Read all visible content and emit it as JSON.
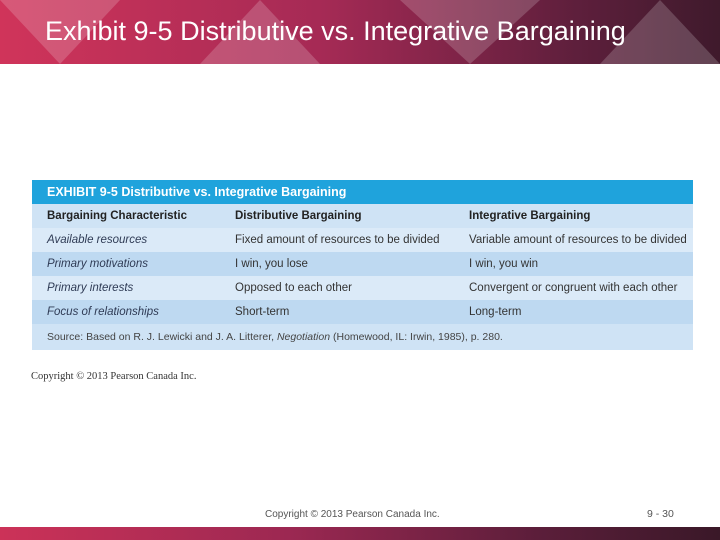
{
  "slide": {
    "title": "Exhibit 9-5 Distributive vs. Integrative Bargaining",
    "accent_color": "#c2305a",
    "dark_color": "#3f1a2c"
  },
  "exhibit": {
    "heading": "EXHIBIT 9-5  Distributive vs. Integrative Bargaining",
    "header_color": "#1fa3dc",
    "columns": [
      "Bargaining Characteristic",
      "Distributive Bargaining",
      "Integrative Bargaining"
    ],
    "rows": [
      [
        "Available resources",
        "Fixed amount of resources to be divided",
        "Variable amount of resources to be divided"
      ],
      [
        "Primary motivations",
        "I win, you lose",
        "I win, you win"
      ],
      [
        "Primary interests",
        "Opposed to each other",
        "Convergent or congruent with each other"
      ],
      [
        "Focus of relationships",
        "Short-term",
        "Long-term"
      ]
    ],
    "source": {
      "prefix": "Source: Based on R. J. Lewicki and J. A. Litterer, ",
      "book": "Negotiation",
      "suffix": " (Homewood, IL: Irwin, 1985), p. 280."
    },
    "copyright": "Copyright © 2013 Pearson Canada Inc."
  },
  "footer": {
    "copyright": "Copyright © 2013 Pearson Canada Inc.",
    "page": "9 - 30"
  }
}
